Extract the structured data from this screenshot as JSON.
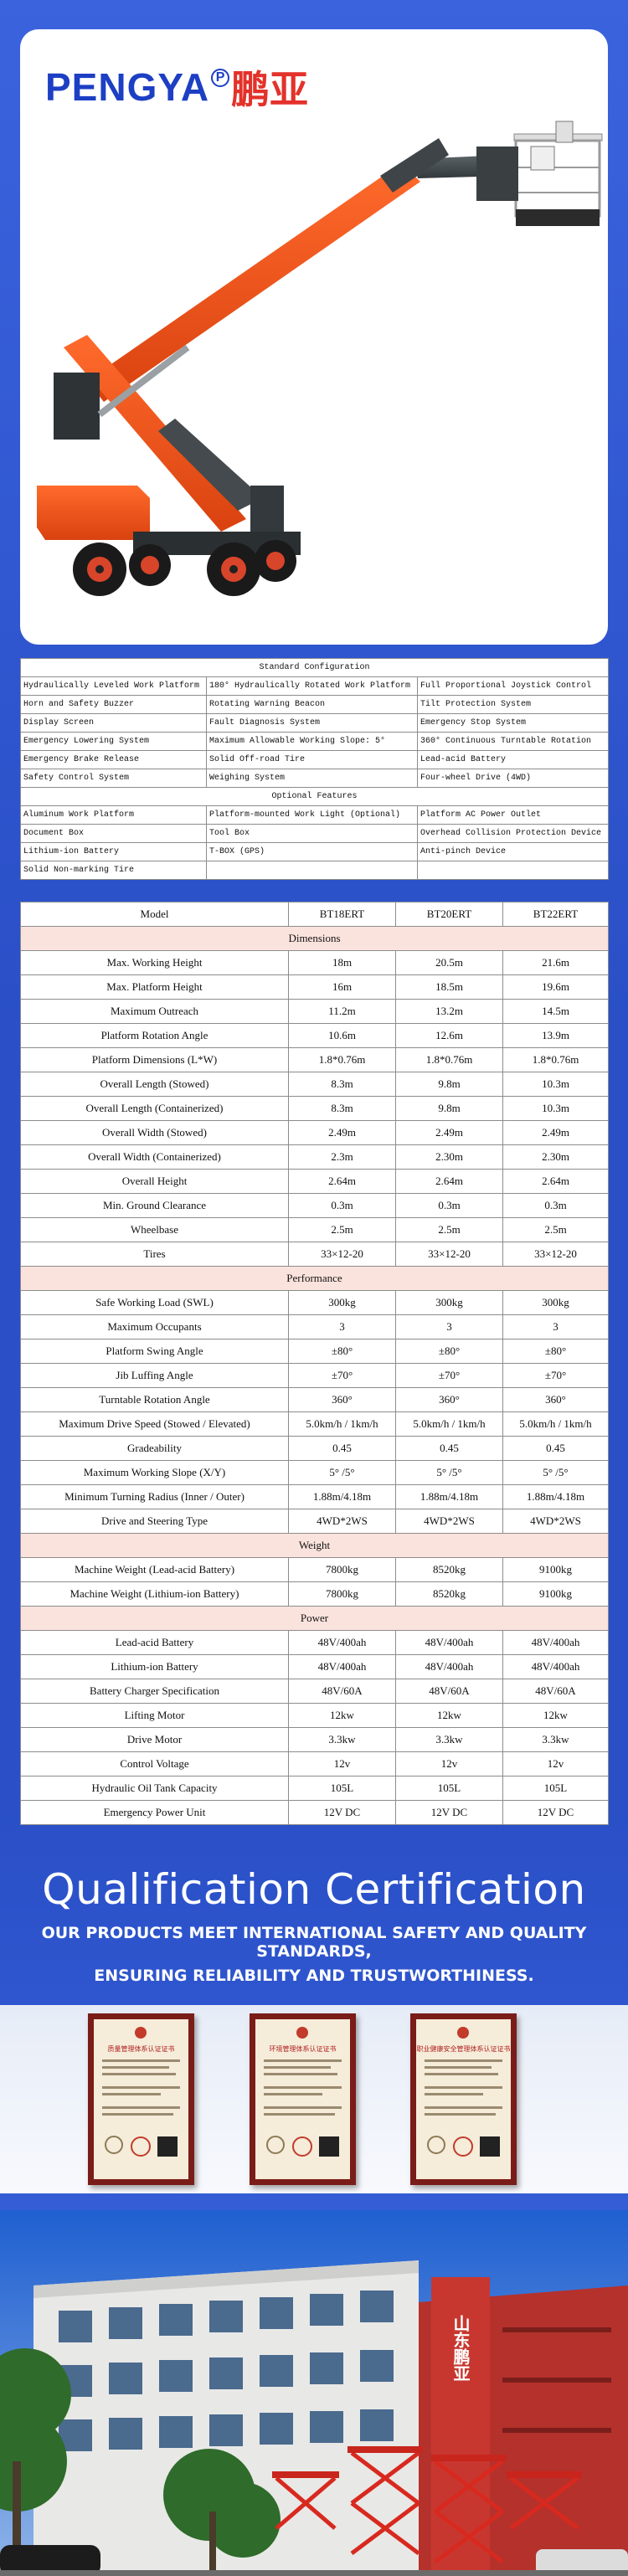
{
  "brand": {
    "name": "PENGYA",
    "reg": "P",
    "name_cn": "鹏亚"
  },
  "standard_config": {
    "title": "Standard Configuration",
    "rows": [
      [
        "Hydraulically Leveled Work Platform",
        "180° Hydraulically Rotated Work Platform",
        "Full Proportional Joystick Control"
      ],
      [
        "Horn and Safety Buzzer",
        "Rotating Warning Beacon",
        "Tilt Protection System"
      ],
      [
        "Display Screen",
        "Fault Diagnosis System",
        "Emergency Stop System"
      ],
      [
        "Emergency Lowering System",
        "Maximum Allowable Working Slope: 5°",
        "360° Continuous Turntable Rotation"
      ],
      [
        "Emergency Brake Release",
        "Solid Off-road Tire",
        "Lead-acid Battery"
      ],
      [
        "Safety Control System",
        "Weighing System",
        "Four-wheel Drive (4WD)"
      ]
    ]
  },
  "optional_features": {
    "title": "Optional Features",
    "rows": [
      [
        "Aluminum Work Platform",
        "Platform-mounted Work Light (Optional)",
        "Platform AC Power Outlet"
      ],
      [
        "Document Box",
        "Tool Box",
        "Overhead Collision Protection Device"
      ],
      [
        "Lithium-ion Battery",
        "T-BOX (GPS)",
        "Anti-pinch Device"
      ],
      [
        "Solid Non-marking Tire",
        "",
        ""
      ]
    ]
  },
  "spec_table": {
    "header": [
      "Model",
      "BT18ERT",
      "BT20ERT",
      "BT22ERT"
    ],
    "sections": [
      {
        "title": "Dimensions",
        "rows": [
          [
            "Max. Working Height",
            "18m",
            "20.5m",
            "21.6m"
          ],
          [
            "Max. Platform Height",
            "16m",
            "18.5m",
            "19.6m"
          ],
          [
            "Maximum Outreach",
            "11.2m",
            "13.2m",
            "14.5m"
          ],
          [
            "Platform Rotation Angle",
            "10.6m",
            "12.6m",
            "13.9m"
          ],
          [
            "Platform Dimensions (L*W)",
            "1.8*0.76m",
            "1.8*0.76m",
            "1.8*0.76m"
          ],
          [
            "Overall Length (Stowed)",
            "8.3m",
            "9.8m",
            "10.3m"
          ],
          [
            "Overall Length (Containerized)",
            "8.3m",
            "9.8m",
            "10.3m"
          ],
          [
            "Overall Width (Stowed)",
            "2.49m",
            "2.49m",
            "2.49m"
          ],
          [
            "Overall Width (Containerized)",
            "2.3m",
            "2.30m",
            "2.30m"
          ],
          [
            "Overall Height",
            "2.64m",
            "2.64m",
            "2.64m"
          ],
          [
            "Min. Ground Clearance",
            "0.3m",
            "0.3m",
            "0.3m"
          ],
          [
            "Wheelbase",
            "2.5m",
            "2.5m",
            "2.5m"
          ],
          [
            "Tires",
            "33×12-20",
            "33×12-20",
            "33×12-20"
          ]
        ]
      },
      {
        "title": "Performance",
        "rows": [
          [
            "Safe Working Load (SWL)",
            "300kg",
            "300kg",
            "300kg"
          ],
          [
            "Maximum Occupants",
            "3",
            "3",
            "3"
          ],
          [
            "Platform Swing Angle",
            "±80°",
            "±80°",
            "±80°"
          ],
          [
            "Jib Luffing Angle",
            "±70°",
            "±70°",
            "±70°"
          ],
          [
            "Turntable Rotation Angle",
            "360°",
            "360°",
            "360°"
          ],
          [
            "Maximum Drive Speed (Stowed / Elevated)",
            "5.0km/h / 1km/h",
            "5.0km/h / 1km/h",
            "5.0km/h / 1km/h"
          ],
          [
            "Gradeability",
            "0.45",
            "0.45",
            "0.45"
          ],
          [
            "Maximum Working Slope (X/Y)",
            "5° /5°",
            "5° /5°",
            "5° /5°"
          ],
          [
            "Minimum Turning Radius (Inner / Outer)",
            "1.88m/4.18m",
            "1.88m/4.18m",
            "1.88m/4.18m"
          ],
          [
            "Drive and Steering Type",
            "4WD*2WS",
            "4WD*2WS",
            "4WD*2WS"
          ]
        ]
      },
      {
        "title": "Weight",
        "rows": [
          [
            "Machine Weight (Lead-acid Battery)",
            "7800kg",
            "8520kg",
            "9100kg"
          ],
          [
            "Machine Weight (Lithium-ion Battery)",
            "7800kg",
            "8520kg",
            "9100kg"
          ]
        ]
      },
      {
        "title": "Power",
        "rows": [
          [
            "Lead-acid Battery",
            "48V/400ah",
            "48V/400ah",
            "48V/400ah"
          ],
          [
            "Lithium-ion Battery",
            "48V/400ah",
            "48V/400ah",
            "48V/400ah"
          ],
          [
            "Battery Charger Specification",
            "48V/60A",
            "48V/60A",
            "48V/60A"
          ],
          [
            "Lifting Motor",
            "12kw",
            "12kw",
            "12kw"
          ],
          [
            "Drive Motor",
            "3.3kw",
            "3.3kw",
            "3.3kw"
          ],
          [
            "Control Voltage",
            "12v",
            "12v",
            "12v"
          ],
          [
            "Hydraulic Oil Tank Capacity",
            "105L",
            "105L",
            "105L"
          ],
          [
            "Emergency Power Unit",
            "12V DC",
            "12V DC",
            "12V DC"
          ]
        ]
      }
    ]
  },
  "qualification": {
    "title": "Qualification Certification",
    "line1": "OUR PRODUCTS MEET INTERNATIONAL SAFETY AND QUALITY STANDARDS,",
    "line2": "ENSURING RELIABILITY AND TRUSTWORTHINESS."
  },
  "certificates": [
    {
      "name": "质量管理体系认证证书"
    },
    {
      "name": "环境管理体系认证证书"
    },
    {
      "name": "职业健康安全管理体系认证证书"
    }
  ],
  "building": {
    "sign": "山东鹏亚"
  },
  "colors": {
    "brand_blue": "#1d3fc4",
    "brand_red": "#e3322a",
    "machine_orange": "#f0541e",
    "section_pink": "#fbe3dd"
  }
}
